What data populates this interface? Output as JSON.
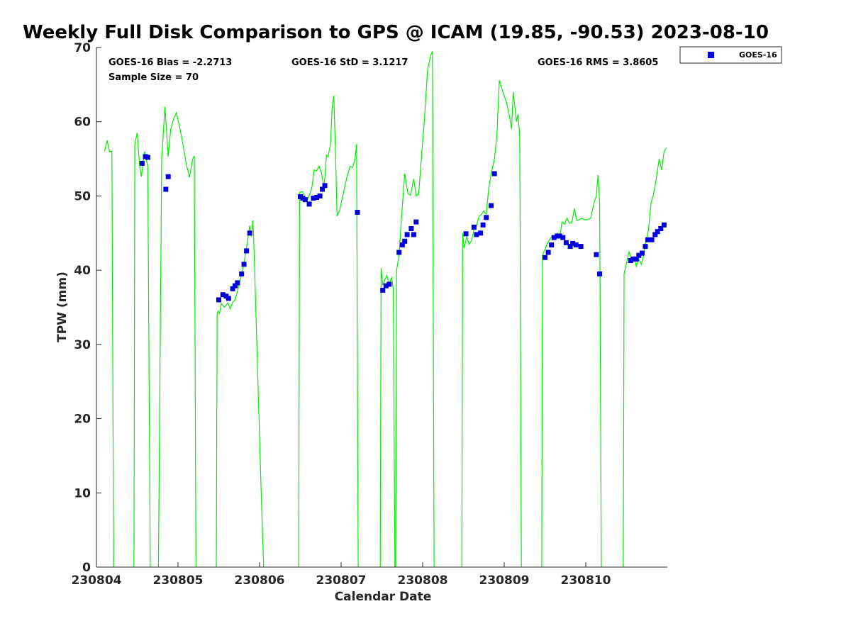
{
  "chart_data": {
    "type": "scatter",
    "title": "Weekly Full Disk Comparison to GPS @ ICAM (19.85, -90.53) 2023-08-10",
    "xlabel": "Calendar Date",
    "ylabel": "TPW (mm)",
    "xlim": [
      0,
      7.0
    ],
    "ylim": [
      0,
      70
    ],
    "x_ticks": [
      {
        "value": 0,
        "label": "230804"
      },
      {
        "value": 1,
        "label": "230805"
      },
      {
        "value": 2,
        "label": "230806"
      },
      {
        "value": 3,
        "label": "230807"
      },
      {
        "value": 4,
        "label": "230808"
      },
      {
        "value": 5,
        "label": "230809"
      },
      {
        "value": 6,
        "label": "230810"
      }
    ],
    "y_ticks": [
      0,
      10,
      20,
      30,
      40,
      50,
      60,
      70
    ],
    "stats": {
      "bias": "GOES-16 Bias = -2.2713",
      "sample": "Sample Size = 70",
      "std": "GOES-16 StD = 3.1217",
      "rms": "GOES-16 RMS = 3.8605"
    },
    "legend": {
      "position": "top-right",
      "label": "GOES-16"
    },
    "series": [
      {
        "name": "GOES-16",
        "marker": "square",
        "color": "#0000dd",
        "points": [
          [
            0.56,
            54.4
          ],
          [
            0.6,
            55.3
          ],
          [
            0.63,
            55.2
          ],
          [
            0.85,
            50.9
          ],
          [
            0.88,
            52.6
          ],
          [
            1.5,
            36.0
          ],
          [
            1.55,
            36.7
          ],
          [
            1.59,
            36.5
          ],
          [
            1.62,
            36.2
          ],
          [
            1.67,
            37.5
          ],
          [
            1.7,
            37.9
          ],
          [
            1.73,
            38.3
          ],
          [
            1.78,
            39.5
          ],
          [
            1.81,
            40.8
          ],
          [
            1.84,
            42.6
          ],
          [
            1.88,
            45.0
          ],
          [
            2.5,
            49.9
          ],
          [
            2.53,
            49.7
          ],
          [
            2.56,
            49.5
          ],
          [
            2.61,
            48.9
          ],
          [
            2.66,
            49.7
          ],
          [
            2.7,
            49.8
          ],
          [
            2.74,
            50.0
          ],
          [
            2.77,
            50.9
          ],
          [
            2.8,
            51.4
          ],
          [
            3.2,
            47.8
          ],
          [
            3.51,
            37.3
          ],
          [
            3.55,
            37.9
          ],
          [
            3.59,
            38.1
          ],
          [
            3.71,
            42.4
          ],
          [
            3.75,
            43.4
          ],
          [
            3.78,
            43.9
          ],
          [
            3.81,
            44.8
          ],
          [
            3.86,
            45.6
          ],
          [
            3.89,
            44.8
          ],
          [
            3.92,
            46.5
          ],
          [
            4.53,
            44.9
          ],
          [
            4.63,
            45.8
          ],
          [
            4.66,
            44.8
          ],
          [
            4.71,
            45.0
          ],
          [
            4.74,
            46.1
          ],
          [
            4.78,
            47.1
          ],
          [
            4.84,
            48.7
          ],
          [
            4.88,
            53.0
          ],
          [
            5.5,
            41.7
          ],
          [
            5.54,
            42.4
          ],
          [
            5.58,
            43.4
          ],
          [
            5.61,
            44.4
          ],
          [
            5.65,
            44.6
          ],
          [
            5.68,
            44.6
          ],
          [
            5.72,
            44.4
          ],
          [
            5.76,
            43.7
          ],
          [
            5.81,
            43.2
          ],
          [
            5.84,
            43.6
          ],
          [
            5.88,
            43.4
          ],
          [
            5.94,
            43.2
          ],
          [
            6.13,
            42.1
          ],
          [
            6.17,
            39.5
          ],
          [
            6.55,
            41.3
          ],
          [
            6.58,
            41.5
          ],
          [
            6.62,
            41.5
          ],
          [
            6.65,
            42.0
          ],
          [
            6.69,
            42.3
          ],
          [
            6.73,
            43.2
          ],
          [
            6.76,
            44.1
          ],
          [
            6.81,
            44.1
          ],
          [
            6.85,
            44.8
          ],
          [
            6.88,
            45.2
          ],
          [
            6.92,
            45.6
          ],
          [
            6.96,
            46.1
          ]
        ]
      },
      {
        "name": "",
        "kind": "line",
        "color": "#00ee00",
        "segments": [
          [
            [
              0.1,
              56.0
            ],
            [
              0.13,
              57.5
            ],
            [
              0.16,
              56.0
            ],
            [
              0.19,
              56.0
            ],
            [
              0.21,
              0
            ]
          ],
          [
            [
              0.46,
              0
            ],
            [
              0.47,
              57.0
            ],
            [
              0.5,
              58.5
            ],
            [
              0.53,
              54.0
            ],
            [
              0.55,
              52.6
            ],
            [
              0.59,
              56.0
            ],
            [
              0.63,
              54.0
            ],
            [
              0.66,
              0
            ]
          ],
          [
            [
              0.76,
              0
            ],
            [
              0.8,
              55.0
            ],
            [
              0.84,
              62.0
            ],
            [
              0.88,
              55.3
            ],
            [
              0.91,
              59.0
            ],
            [
              0.95,
              60.5
            ],
            [
              0.98,
              61.2
            ],
            [
              1.02,
              59.3
            ],
            [
              1.06,
              57.0
            ],
            [
              1.1,
              54.4
            ],
            [
              1.14,
              52.5
            ],
            [
              1.18,
              55.0
            ],
            [
              1.2,
              55.4
            ],
            [
              1.22,
              0
            ]
          ],
          [
            [
              1.47,
              0
            ],
            [
              1.48,
              34.0
            ],
            [
              1.49,
              34.5
            ],
            [
              1.51,
              34.2
            ],
            [
              1.53,
              35.5
            ],
            [
              1.57,
              35.0
            ],
            [
              1.61,
              35.6
            ],
            [
              1.64,
              34.8
            ],
            [
              1.67,
              35.7
            ],
            [
              1.7,
              36.0
            ],
            [
              1.73,
              37.2
            ],
            [
              1.77,
              39.0
            ],
            [
              1.81,
              41.0
            ],
            [
              1.84,
              43.0
            ],
            [
              1.88,
              46.0
            ],
            [
              1.9,
              44.5
            ],
            [
              1.92,
              46.7
            ],
            [
              1.94,
              40.0
            ],
            [
              1.98,
              25.0
            ],
            [
              2.02,
              10.0
            ],
            [
              2.05,
              0
            ]
          ],
          [
            [
              2.48,
              0
            ],
            [
              2.49,
              50.5
            ],
            [
              2.52,
              50.6
            ],
            [
              2.55,
              50.0
            ],
            [
              2.58,
              49.3
            ],
            [
              2.61,
              50.1
            ],
            [
              2.64,
              51.0
            ],
            [
              2.67,
              53.5
            ],
            [
              2.7,
              53.4
            ],
            [
              2.73,
              54.0
            ],
            [
              2.76,
              53.1
            ],
            [
              2.79,
              51.0
            ],
            [
              2.82,
              55.5
            ],
            [
              2.84,
              55.3
            ],
            [
              2.87,
              57.0
            ],
            [
              2.89,
              62.0
            ],
            [
              2.91,
              63.5
            ],
            [
              2.93,
              56.0
            ],
            [
              2.95,
              47.3
            ],
            [
              2.98,
              48.0
            ],
            [
              3.02,
              50.0
            ],
            [
              3.07,
              52.5
            ],
            [
              3.11,
              54.0
            ],
            [
              3.14,
              53.8
            ],
            [
              3.17,
              55.0
            ],
            [
              3.19,
              57.0
            ],
            [
              3.21,
              0
            ]
          ],
          [
            [
              3.48,
              0
            ],
            [
              3.49,
              40.3
            ],
            [
              3.51,
              38.0
            ],
            [
              3.53,
              38.5
            ],
            [
              3.56,
              39.3
            ],
            [
              3.59,
              38.2
            ],
            [
              3.62,
              39.0
            ],
            [
              3.64,
              37.5
            ],
            [
              3.66,
              0
            ]
          ],
          [
            [
              3.67,
              0
            ],
            [
              3.68,
              40.0
            ],
            [
              3.71,
              42.0
            ],
            [
              3.74,
              47.0
            ],
            [
              3.78,
              53.0
            ],
            [
              3.82,
              50.3
            ],
            [
              3.85,
              50.1
            ],
            [
              3.89,
              52.3
            ],
            [
              3.92,
              50.0
            ],
            [
              3.95,
              50.2
            ],
            [
              3.99,
              56.0
            ],
            [
              4.02,
              60.0
            ],
            [
              4.06,
              67.0
            ],
            [
              4.1,
              69.0
            ],
            [
              4.12,
              69.5
            ],
            [
              4.14,
              0
            ]
          ],
          [
            [
              4.48,
              0
            ],
            [
              4.49,
              45.0
            ],
            [
              4.51,
              43.0
            ],
            [
              4.54,
              44.5
            ],
            [
              4.57,
              43.5
            ],
            [
              4.6,
              44.0
            ],
            [
              4.63,
              45.5
            ],
            [
              4.66,
              46.0
            ],
            [
              4.69,
              47.2
            ],
            [
              4.72,
              47.5
            ],
            [
              4.75,
              48.0
            ],
            [
              4.78,
              47.5
            ],
            [
              4.81,
              51.0
            ],
            [
              4.84,
              53.0
            ],
            [
              4.88,
              55.0
            ],
            [
              4.91,
              58.0
            ],
            [
              4.94,
              65.6
            ],
            [
              4.97,
              64.5
            ],
            [
              5.0,
              63.5
            ],
            [
              5.03,
              62.5
            ],
            [
              5.06,
              61.0
            ],
            [
              5.09,
              59.0
            ],
            [
              5.11,
              64.0
            ],
            [
              5.13,
              62.0
            ],
            [
              5.15,
              60.0
            ],
            [
              5.17,
              61.0
            ],
            [
              5.19,
              58.0
            ],
            [
              5.21,
              0
            ]
          ],
          [
            [
              5.46,
              0
            ],
            [
              5.47,
              42.0
            ],
            [
              5.5,
              42.8
            ],
            [
              5.53,
              43.6
            ],
            [
              5.56,
              44.2
            ],
            [
              5.59,
              44.6
            ],
            [
              5.62,
              44.4
            ],
            [
              5.65,
              45.0
            ],
            [
              5.68,
              44.5
            ],
            [
              5.71,
              46.5
            ],
            [
              5.74,
              46.2
            ],
            [
              5.77,
              47.0
            ],
            [
              5.8,
              46.3
            ],
            [
              5.83,
              46.5
            ],
            [
              5.86,
              48.3
            ],
            [
              5.89,
              46.7
            ],
            [
              5.92,
              46.8
            ],
            [
              5.95,
              47.0
            ],
            [
              5.98,
              46.8
            ],
            [
              6.02,
              46.8
            ],
            [
              6.06,
              47.0
            ],
            [
              6.1,
              49.0
            ],
            [
              6.13,
              50.0
            ],
            [
              6.15,
              52.8
            ],
            [
              6.17,
              49.0
            ],
            [
              6.19,
              0
            ]
          ],
          [
            [
              6.46,
              0
            ],
            [
              6.47,
              39.5
            ],
            [
              6.5,
              41.0
            ],
            [
              6.53,
              42.5
            ],
            [
              6.56,
              41.5
            ],
            [
              6.59,
              41.8
            ],
            [
              6.62,
              40.5
            ],
            [
              6.65,
              41.5
            ],
            [
              6.68,
              40.8
            ],
            [
              6.71,
              42.0
            ],
            [
              6.74,
              44.0
            ],
            [
              6.77,
              45.5
            ],
            [
              6.8,
              49.0
            ],
            [
              6.83,
              50.2
            ],
            [
              6.86,
              52.0
            ],
            [
              6.9,
              55.0
            ],
            [
              6.93,
              53.5
            ],
            [
              6.96,
              56.0
            ],
            [
              6.99,
              56.5
            ]
          ]
        ]
      }
    ]
  }
}
